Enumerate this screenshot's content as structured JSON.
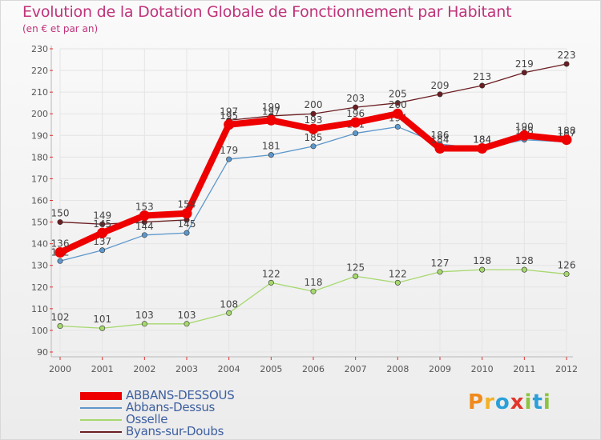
{
  "title": "Evolution de la Dotation Globale de Fonctionnement par Habitant",
  "subtitle": "(en € et par an)",
  "logo": {
    "text": "Proxiti",
    "letters": [
      "P",
      "r",
      "o",
      "x",
      "i",
      "t",
      "i"
    ],
    "colors": [
      "#f08a1c",
      "#f2b227",
      "#2a9fd8",
      "#e2352b",
      "#8cc43f",
      "#2a9fd8",
      "#8cc43f"
    ]
  },
  "chart_data": {
    "type": "line",
    "title": "Evolution de la Dotation Globale de Fonctionnement par Habitant",
    "subtitle": "(en € et par an)",
    "xlabel": "",
    "ylabel": "",
    "x": [
      "2000",
      "2001",
      "2002",
      "2003",
      "2004",
      "2005",
      "2006",
      "2007",
      "2008",
      "2009",
      "2010",
      "2011",
      "2012"
    ],
    "ylim": [
      90,
      230
    ],
    "yticks": [
      90,
      100,
      110,
      120,
      130,
      140,
      150,
      160,
      170,
      180,
      190,
      200,
      210,
      220,
      230
    ],
    "grid": true,
    "legend_position": "bottom-left",
    "series": [
      {
        "name": "Byans-sur-Doubs",
        "color": "#6b1e22",
        "width": "thin",
        "values": [
          150,
          149,
          150,
          151,
          197,
          199,
          200,
          203,
          205,
          209,
          213,
          219,
          223
        ],
        "labels": [
          "150",
          "149",
          "",
          "",
          "197",
          "199",
          "200",
          "203",
          "205",
          "209",
          "213",
          "219",
          "223"
        ]
      },
      {
        "name": "Osselle",
        "color": "#a6d86e",
        "width": "thin",
        "values": [
          102,
          101,
          103,
          103,
          108,
          122,
          118,
          125,
          122,
          127,
          128,
          128,
          126
        ],
        "labels": [
          "102",
          "101",
          "103",
          "103",
          "108",
          "122",
          "118",
          "125",
          "122",
          "127",
          "128",
          "128",
          "126"
        ]
      },
      {
        "name": "Abbans-Dessus",
        "color": "#5d97cb",
        "width": "thin",
        "values": [
          132,
          137,
          144,
          145,
          179,
          181,
          185,
          191,
          194,
          186,
          184,
          188,
          187
        ],
        "labels": [
          "132",
          "137",
          "144",
          "145",
          "179",
          "181",
          "185",
          "191",
          "194",
          "186",
          "184",
          "188",
          "187"
        ]
      },
      {
        "name": "ABBANS-DESSOUS",
        "color": "#ee0000",
        "width": "thick",
        "values": [
          136,
          145,
          153,
          154,
          195,
          197,
          193,
          196,
          200,
          184,
          184,
          190,
          188
        ],
        "labels": [
          "136",
          "145",
          "153",
          "154",
          "195",
          "197",
          "193",
          "196",
          "200",
          "184",
          "184",
          "190",
          "188"
        ]
      }
    ],
    "legend_order": [
      "ABBANS-DESSOUS",
      "Abbans-Dessus",
      "Osselle",
      "Byans-sur-Doubs"
    ]
  }
}
